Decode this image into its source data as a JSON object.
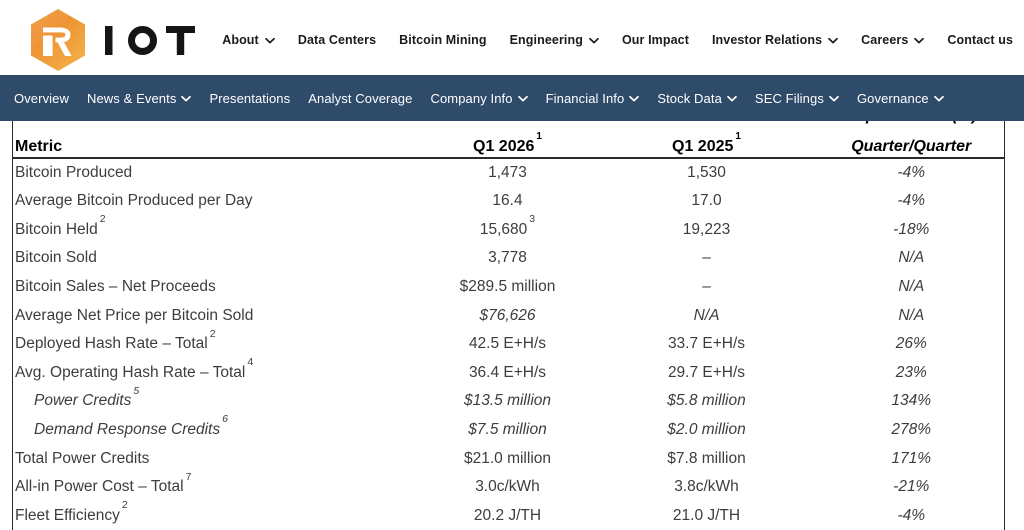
{
  "colors": {
    "navbar_blue": "#2f4b6a",
    "hexagon_gradient": [
      "#f1a14e",
      "#ee9435",
      "#f3b049"
    ],
    "logo_letters": "#151515",
    "table_text": "#3d3d3d",
    "nav_text": "#1b1b1b"
  },
  "brand": {
    "name": "RIOT",
    "logo_letter_in_hexagon": "R",
    "logo_letters_outside": "IOT"
  },
  "top_nav": {
    "items": [
      {
        "label": "About",
        "dropdown": true
      },
      {
        "label": "Data Centers",
        "dropdown": false
      },
      {
        "label": "Bitcoin Mining",
        "dropdown": false
      },
      {
        "label": "Engineering",
        "dropdown": true
      },
      {
        "label": "Our Impact",
        "dropdown": false
      },
      {
        "label": "Investor Relations",
        "dropdown": true
      },
      {
        "label": "Careers",
        "dropdown": true
      },
      {
        "label": "Contact us",
        "dropdown": false
      }
    ]
  },
  "sub_nav": {
    "items": [
      {
        "label": "Overview",
        "dropdown": false
      },
      {
        "label": "News & Events",
        "dropdown": true
      },
      {
        "label": "Presentations",
        "dropdown": false
      },
      {
        "label": "Analyst Coverage",
        "dropdown": false
      },
      {
        "label": "Company Info",
        "dropdown": true
      },
      {
        "label": "Financial Info",
        "dropdown": true
      },
      {
        "label": "Stock Data",
        "dropdown": true
      },
      {
        "label": "SEC Filings",
        "dropdown": true
      },
      {
        "label": "Governance",
        "dropdown": true
      }
    ]
  },
  "table": {
    "columns": [
      {
        "label": "Metric"
      },
      {
        "label": "Q1 2026",
        "sup": "1"
      },
      {
        "label": "Q1 2025",
        "sup": "1"
      },
      {
        "line1": "Improvement (%)",
        "line2": "Quarter/Quarter"
      }
    ],
    "rows": [
      {
        "label": "Bitcoin Produced",
        "v2026": "1,473",
        "v2025": "1,530",
        "qoq": "-4%"
      },
      {
        "label": "Average Bitcoin Produced per Day",
        "v2026": "16.4",
        "v2025": "17.0",
        "qoq": "-4%"
      },
      {
        "label": "Bitcoin Held",
        "label_sup": "2",
        "v2026": "15,680",
        "v2026_sup": "3",
        "v2025": "19,223",
        "qoq": "-18%"
      },
      {
        "label": "Bitcoin Sold",
        "v2026": "3,778",
        "v2025": "–",
        "qoq": "N/A"
      },
      {
        "label": "Bitcoin Sales – Net Proceeds",
        "v2026": "$289.5 million",
        "v2025": "–",
        "qoq": "N/A"
      },
      {
        "label": "Average Net Price per Bitcoin Sold",
        "values_italic": true,
        "v2026": "$76,626",
        "v2025": "N/A",
        "qoq": "N/A"
      },
      {
        "label": "Deployed Hash Rate – Total",
        "label_sup": "2",
        "v2026": "42.5 E+H/s",
        "v2025": "33.7 E+H/s",
        "qoq": "26%"
      },
      {
        "label": "Avg. Operating Hash Rate – Total",
        "label_sup": "4",
        "v2026": "36.4 E+H/s",
        "v2025": "29.7 E+H/s",
        "qoq": "23%"
      },
      {
        "label": "Power Credits",
        "label_sup": "5",
        "indent": true,
        "label_italic": true,
        "values_italic": true,
        "v2026": "$13.5 million",
        "v2025": "$5.8 million",
        "qoq": "134%"
      },
      {
        "label": "Demand Response Credits",
        "label_sup": "6",
        "indent": true,
        "label_italic": true,
        "values_italic": true,
        "v2026": "$7.5 million",
        "v2025": "$2.0 million",
        "qoq": "278%"
      },
      {
        "label": "Total Power Credits",
        "v2026": "$21.0 million",
        "v2025": "$7.8 million",
        "qoq": "171%"
      },
      {
        "label": "All-in Power Cost – Total",
        "label_sup": "7",
        "v2026": "3.0c/kWh",
        "v2025": "3.8c/kWh",
        "qoq": "-21%"
      },
      {
        "label": "Fleet Efficiency",
        "label_sup": "2",
        "v2026": "20.2 J/TH",
        "v2025": "21.0 J/TH",
        "qoq": "-4%"
      }
    ]
  }
}
